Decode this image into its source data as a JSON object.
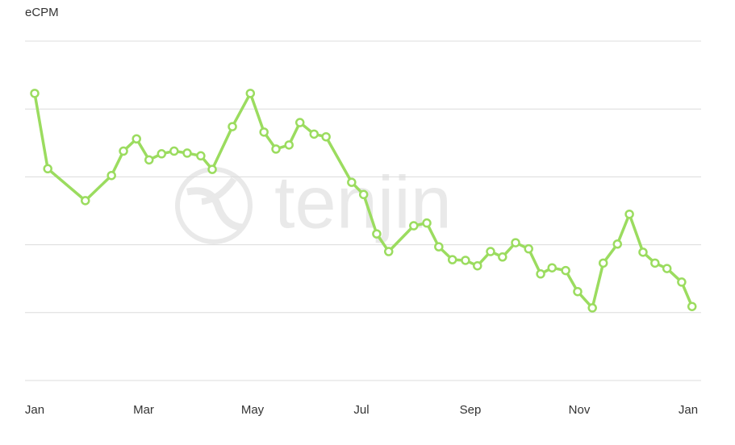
{
  "chart_data": {
    "type": "line",
    "title": "eCPM",
    "watermark": "tenjin",
    "x": [
      0,
      0.24,
      0.93,
      1.41,
      1.63,
      1.87,
      2.1,
      2.33,
      2.56,
      2.8,
      3.05,
      3.26,
      3.63,
      3.96,
      4.21,
      4.43,
      4.67,
      4.87,
      5.13,
      5.35,
      5.82,
      6.04,
      6.28,
      6.5,
      6.96,
      7.2,
      7.42,
      7.67,
      7.91,
      8.13,
      8.37,
      8.59,
      8.83,
      9.07,
      9.29,
      9.5,
      9.75,
      9.97,
      10.24,
      10.44,
      10.7,
      10.92,
      11.17,
      11.39,
      11.61,
      11.88,
      12.07
    ],
    "series": [
      {
        "name": "eCPM",
        "color": "#9bdc5f",
        "values": [
          4.23,
          3.12,
          2.65,
          3.02,
          3.38,
          3.56,
          3.25,
          3.34,
          3.38,
          3.35,
          3.31,
          3.11,
          3.74,
          4.23,
          3.66,
          3.41,
          3.47,
          3.8,
          3.63,
          3.59,
          2.92,
          2.74,
          2.16,
          1.9,
          2.28,
          2.32,
          1.97,
          1.78,
          1.77,
          1.69,
          1.9,
          1.82,
          2.03,
          1.94,
          1.57,
          1.66,
          1.62,
          1.31,
          1.07,
          1.73,
          2.01,
          2.45,
          1.89,
          1.73,
          1.65,
          1.45,
          1.09
        ]
      }
    ],
    "xlim": [
      0,
      12.1
    ],
    "xticks": [
      {
        "value": 0,
        "label": "Jan"
      },
      {
        "value": 2,
        "label": "Mar"
      },
      {
        "value": 4,
        "label": "May"
      },
      {
        "value": 6,
        "label": "Jul"
      },
      {
        "value": 8,
        "label": "Sep"
      },
      {
        "value": 10,
        "label": "Nov"
      },
      {
        "value": 12,
        "label": "Jan"
      }
    ],
    "ylim": [
      0,
      5
    ],
    "yticks": [
      0,
      1,
      2,
      3,
      4,
      5
    ],
    "ytick_labels": false,
    "grid": true
  }
}
